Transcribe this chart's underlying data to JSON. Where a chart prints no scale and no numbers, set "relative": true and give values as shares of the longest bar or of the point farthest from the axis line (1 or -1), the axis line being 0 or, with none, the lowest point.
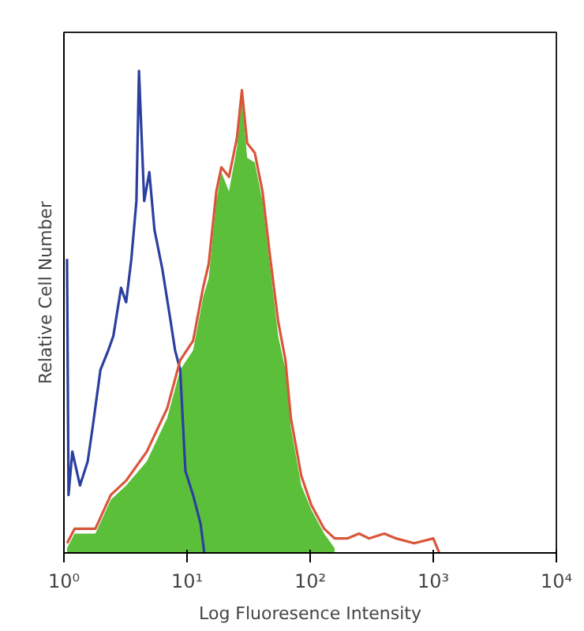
{
  "chart_data": {
    "type": "line",
    "relative": true,
    "xlabel": "Log Fluoresence Intensity",
    "ylabel": "Relative Cell Number",
    "log": "x",
    "xlim": [
      1,
      10000
    ],
    "xticks": [
      {
        "value": 1,
        "label": "10⁰"
      },
      {
        "value": 10,
        "label": "10¹"
      },
      {
        "value": 100,
        "label": "10²"
      },
      {
        "value": 1000,
        "label": "10³"
      },
      {
        "value": 10000,
        "label": "10⁴"
      }
    ],
    "grid": false,
    "series": [
      {
        "type": "line",
        "color": "#2b3fa0",
        "x": [
          1.06,
          1.09,
          1.17,
          1.35,
          1.56,
          1.71,
          1.98,
          2.29,
          2.52,
          2.91,
          3.2,
          3.53,
          3.88,
          4.07,
          4.49,
          4.94,
          5.44,
          6.29,
          7.26,
          8.0,
          8.8,
          9.7,
          11.2,
          12.9,
          13.8
        ],
        "values": [
          0.61,
          0.12,
          0.21,
          0.14,
          0.19,
          0.26,
          0.38,
          0.42,
          0.45,
          0.55,
          0.52,
          0.61,
          0.73,
          1.0,
          0.73,
          0.79,
          0.67,
          0.59,
          0.49,
          0.42,
          0.38,
          0.17,
          0.12,
          0.06,
          0
        ]
      },
      {
        "type": "area",
        "color": "#5cbf3a",
        "x": [
          1.06,
          1.22,
          1.8,
          2.4,
          3.2,
          4.71,
          6.9,
          8.8,
          11.2,
          13.5,
          15.0,
          17.3,
          19.0,
          21.9,
          25.4,
          27.9,
          30.8,
          35.5,
          41,
          47.5,
          55,
          63,
          69.7,
          84.7,
          102,
          130,
          158
        ],
        "values": [
          0.01,
          0.04,
          0.04,
          0.11,
          0.14,
          0.19,
          0.28,
          0.38,
          0.42,
          0.53,
          0.57,
          0.73,
          0.79,
          0.75,
          0.84,
          0.94,
          0.82,
          0.81,
          0.73,
          0.59,
          0.45,
          0.38,
          0.26,
          0.14,
          0.09,
          0.04,
          0.01
        ]
      },
      {
        "color": "#d9553a",
        "x": [
          1.06,
          1.22,
          1.8,
          2.4,
          3.2,
          4.71,
          6.9,
          8.8,
          11.2,
          13.5,
          15.0,
          17.3,
          19.0,
          21.9,
          25.4,
          27.9,
          30.8,
          35.5,
          41,
          47.5,
          55,
          63,
          69.7,
          84.7,
          102,
          130,
          158,
          200,
          250,
          300,
          400,
          500,
          700,
          1000,
          1120
        ],
        "values": [
          0.02,
          0.05,
          0.05,
          0.12,
          0.15,
          0.21,
          0.3,
          0.4,
          0.44,
          0.55,
          0.6,
          0.75,
          0.8,
          0.78,
          0.86,
          0.96,
          0.85,
          0.83,
          0.75,
          0.61,
          0.48,
          0.4,
          0.28,
          0.16,
          0.1,
          0.05,
          0.03,
          0.03,
          0.04,
          0.03,
          0.04,
          0.03,
          0.02,
          0.03,
          0
        ]
      }
    ]
  }
}
